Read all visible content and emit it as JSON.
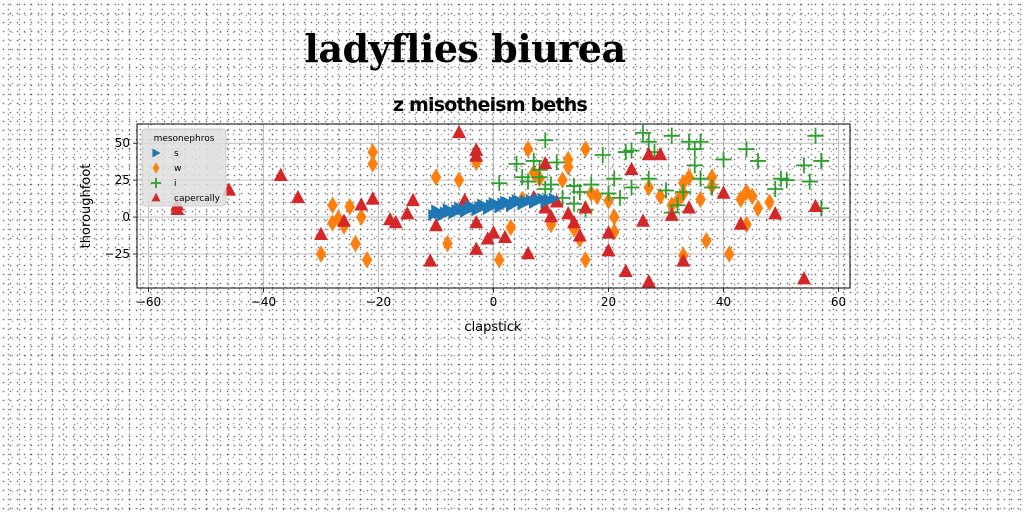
{
  "page": {
    "title": "ladyflies biurea"
  },
  "chart_data": {
    "type": "scatter",
    "title": "z misotheism beths",
    "xlabel": "clapstick",
    "ylabel": "thoroughfoot",
    "xlim": [
      -62,
      62
    ],
    "ylim": [
      -48,
      63
    ],
    "xticks": [
      -60,
      -40,
      -20,
      0,
      20,
      40,
      60
    ],
    "yticks": [
      -25,
      0,
      25,
      50
    ],
    "grid": true,
    "legend": {
      "title": "mesonephros",
      "placement": "upper-left",
      "entries": [
        "s",
        "w",
        "i",
        "capercally"
      ]
    },
    "series": [
      {
        "name": "s",
        "marker": "triangle-right",
        "color": "#1f77b4",
        "points": [
          [
            -10.5,
            1.5
          ],
          [
            -9.5,
            2.5
          ],
          [
            -8.5,
            3.2
          ],
          [
            -7.5,
            4.0
          ],
          [
            -6.5,
            4.8
          ],
          [
            -5.5,
            5.2
          ],
          [
            -4.5,
            5.8
          ],
          [
            -3.5,
            6.5
          ],
          [
            -2.5,
            7.0
          ],
          [
            -1.5,
            7.5
          ],
          [
            -0.5,
            8.2
          ],
          [
            0.5,
            8.8
          ],
          [
            1.5,
            9.2
          ],
          [
            2.5,
            9.8
          ],
          [
            3.5,
            10.2
          ],
          [
            4.5,
            10.8
          ],
          [
            5.5,
            11.0
          ],
          [
            6.5,
            11.5
          ],
          [
            7.5,
            12.0
          ],
          [
            8.5,
            12.5
          ],
          [
            9.5,
            12.0
          ],
          [
            10.5,
            12.5
          ],
          [
            -10.0,
            4.5
          ],
          [
            -8.0,
            5.5
          ],
          [
            -6.0,
            6.5
          ],
          [
            -4.0,
            7.5
          ],
          [
            -2.0,
            8.5
          ],
          [
            0.0,
            9.5
          ],
          [
            2.0,
            10.5
          ],
          [
            4.0,
            11.5
          ],
          [
            -9.0,
            1.0
          ],
          [
            -7.0,
            2.5
          ],
          [
            -5.0,
            3.5
          ],
          [
            -3.0,
            4.5
          ],
          [
            -1.0,
            5.5
          ],
          [
            1.0,
            6.5
          ],
          [
            3.0,
            7.5
          ],
          [
            5.0,
            8.5
          ],
          [
            7.0,
            9.5
          ],
          [
            9.0,
            10.0
          ]
        ]
      },
      {
        "name": "w",
        "marker": "diamond",
        "color": "#ff7f0e",
        "points": [
          [
            -30,
            -25
          ],
          [
            -28,
            -4
          ],
          [
            -27,
            -1
          ],
          [
            -26,
            -6
          ],
          [
            -25,
            7
          ],
          [
            -24,
            -18
          ],
          [
            -23,
            0
          ],
          [
            -22,
            -29
          ],
          [
            -21,
            44
          ],
          [
            -21,
            36
          ],
          [
            -28,
            8
          ],
          [
            -10,
            27
          ],
          [
            -8,
            -18
          ],
          [
            -6,
            25
          ],
          [
            -3,
            37
          ],
          [
            1,
            -29
          ],
          [
            3,
            -7
          ],
          [
            5,
            12
          ],
          [
            6,
            46
          ],
          [
            7,
            30
          ],
          [
            8,
            26
          ],
          [
            9,
            10
          ],
          [
            10,
            -5
          ],
          [
            12,
            25
          ],
          [
            13,
            39
          ],
          [
            13,
            34
          ],
          [
            14,
            -8
          ],
          [
            15,
            -15
          ],
          [
            16,
            -29
          ],
          [
            16,
            46
          ],
          [
            17,
            16
          ],
          [
            18,
            14
          ],
          [
            20,
            11
          ],
          [
            21,
            0
          ],
          [
            21,
            -10
          ],
          [
            27,
            20
          ],
          [
            29,
            14
          ],
          [
            33,
            -26
          ],
          [
            32,
            11
          ],
          [
            33,
            16
          ],
          [
            34,
            27
          ],
          [
            36,
            12
          ],
          [
            37,
            -16
          ],
          [
            38,
            27
          ],
          [
            38,
            21
          ],
          [
            41,
            -25
          ],
          [
            43,
            12
          ],
          [
            44,
            17
          ],
          [
            44,
            -5
          ],
          [
            45,
            14
          ],
          [
            46,
            6
          ],
          [
            48,
            10
          ],
          [
            31,
            8
          ],
          [
            33,
            23
          ]
        ]
      },
      {
        "name": "i",
        "marker": "plus",
        "color": "#2ca02c",
        "points": [
          [
            1,
            23
          ],
          [
            4,
            36
          ],
          [
            5,
            27
          ],
          [
            6,
            24
          ],
          [
            7,
            38
          ],
          [
            8,
            32
          ],
          [
            8,
            27
          ],
          [
            9,
            52
          ],
          [
            9,
            19
          ],
          [
            10,
            22
          ],
          [
            11,
            37
          ],
          [
            12,
            13
          ],
          [
            14,
            9
          ],
          [
            14,
            21
          ],
          [
            15,
            17
          ],
          [
            16,
            5
          ],
          [
            17,
            22
          ],
          [
            19,
            42
          ],
          [
            20,
            16
          ],
          [
            21,
            26
          ],
          [
            22,
            13
          ],
          [
            23,
            44
          ],
          [
            24,
            45
          ],
          [
            26,
            57
          ],
          [
            27,
            51
          ],
          [
            28,
            44
          ],
          [
            31,
            55
          ],
          [
            31,
            3
          ],
          [
            32,
            8
          ],
          [
            33,
            17
          ],
          [
            34,
            51
          ],
          [
            35,
            46
          ],
          [
            35,
            35
          ],
          [
            36,
            51
          ],
          [
            36,
            26
          ],
          [
            38,
            20
          ],
          [
            40,
            39
          ],
          [
            44,
            46
          ],
          [
            46,
            38
          ],
          [
            49,
            19
          ],
          [
            50,
            26
          ],
          [
            51,
            25
          ],
          [
            54,
            35
          ],
          [
            55,
            24
          ],
          [
            56,
            55
          ],
          [
            57,
            38
          ],
          [
            57,
            6
          ],
          [
            30,
            18
          ],
          [
            24,
            20
          ],
          [
            27,
            26
          ]
        ]
      },
      {
        "name": "capercally",
        "marker": "triangle-up",
        "color": "#d62728",
        "points": [
          [
            -55,
            8
          ],
          [
            -46,
            18
          ],
          [
            -37,
            28
          ],
          [
            -34,
            13
          ],
          [
            -30,
            -12
          ],
          [
            -26,
            -3
          ],
          [
            -23,
            8
          ],
          [
            -21,
            12
          ],
          [
            -18,
            -2
          ],
          [
            -17,
            -4
          ],
          [
            -15,
            2
          ],
          [
            -14,
            11
          ],
          [
            -11,
            -30
          ],
          [
            -10,
            -6
          ],
          [
            -6,
            57
          ],
          [
            -5,
            11
          ],
          [
            -3,
            41
          ],
          [
            -3,
            45
          ],
          [
            -3,
            -4
          ],
          [
            -3,
            -22
          ],
          [
            -1,
            -15
          ],
          [
            0,
            -11
          ],
          [
            2,
            -14
          ],
          [
            6,
            -25
          ],
          [
            7,
            13
          ],
          [
            9,
            36
          ],
          [
            9,
            6
          ],
          [
            10,
            0
          ],
          [
            11,
            10
          ],
          [
            13,
            2
          ],
          [
            14,
            -4
          ],
          [
            15,
            -13
          ],
          [
            16,
            6
          ],
          [
            20,
            -23
          ],
          [
            20,
            -11
          ],
          [
            23,
            -37
          ],
          [
            24,
            32
          ],
          [
            26,
            -3
          ],
          [
            27,
            -44
          ],
          [
            27,
            42
          ],
          [
            29,
            42
          ],
          [
            31,
            1
          ],
          [
            33,
            -30
          ],
          [
            34,
            6
          ],
          [
            40,
            16
          ],
          [
            43,
            -5
          ],
          [
            49,
            2
          ],
          [
            54,
            -42
          ],
          [
            56,
            7
          ],
          [
            -55,
            5
          ]
        ]
      }
    ]
  }
}
